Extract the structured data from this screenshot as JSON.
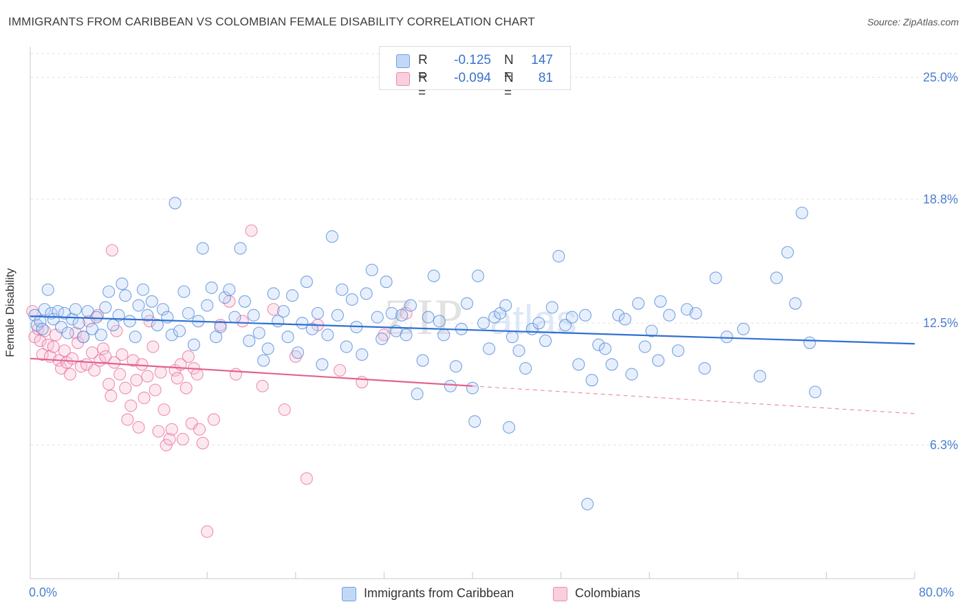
{
  "title": "IMMIGRANTS FROM CARIBBEAN VS COLOMBIAN FEMALE DISABILITY CORRELATION CHART",
  "source": "Source: ZipAtlas.com",
  "watermark": "ZIPatlas",
  "colors": {
    "blue": "#4a85d8",
    "blue_fill": "#b9d2f5",
    "pink": "#e86a9a",
    "pink_fill": "#f7c1d3",
    "axis_text": "#4a7fd0",
    "grid": "#e3e3e3"
  },
  "legend_top": [
    {
      "r_label": "R =",
      "r_value": "-0.125",
      "n_label": "N =",
      "n_value": "147"
    },
    {
      "r_label": "R =",
      "r_value": "-0.094",
      "n_label": "N =",
      "n_value": "81"
    }
  ],
  "legend_bottom": [
    "Immigrants from Caribbean",
    "Colombians"
  ],
  "x_axis": {
    "min_label": "0.0%",
    "max_label": "80.0%"
  },
  "chart_data": {
    "type": "scatter",
    "title": "IMMIGRANTS FROM CARIBBEAN VS COLOMBIAN FEMALE DISABILITY CORRELATION CHART",
    "xlabel": "",
    "ylabel": "Female Disability",
    "xlim": [
      0,
      80
    ],
    "ylim": [
      0,
      26.2
    ],
    "y_ticks": [
      {
        "value": 6.3,
        "label": "6.3%"
      },
      {
        "value": 12.5,
        "label": "12.5%"
      },
      {
        "value": 18.8,
        "label": "18.8%"
      },
      {
        "value": 25.0,
        "label": "25.0%"
      }
    ],
    "x_tick_labels": [
      "0.0%",
      "80.0%"
    ],
    "grid": true,
    "series": [
      {
        "name": "Immigrants from Caribbean",
        "color": "#4a85d8",
        "r": -0.125,
        "n": 147,
        "trend": {
          "x": [
            0,
            80
          ],
          "y": [
            12.85,
            11.45
          ]
        },
        "points": [
          [
            0.4,
            12.9
          ],
          [
            0.6,
            12.4
          ],
          [
            0.9,
            12.6
          ],
          [
            1.1,
            12.2
          ],
          [
            1.3,
            13.2
          ],
          [
            1.6,
            14.2
          ],
          [
            1.9,
            13.0
          ],
          [
            2.1,
            12.7
          ],
          [
            2.5,
            13.1
          ],
          [
            2.8,
            12.3
          ],
          [
            3.1,
            13.0
          ],
          [
            3.4,
            12.0
          ],
          [
            3.8,
            12.7
          ],
          [
            4.1,
            13.2
          ],
          [
            4.4,
            12.5
          ],
          [
            4.8,
            11.8
          ],
          [
            5.2,
            13.1
          ],
          [
            5.6,
            12.2
          ],
          [
            6.0,
            12.8
          ],
          [
            6.4,
            11.9
          ],
          [
            6.8,
            13.3
          ],
          [
            7.1,
            14.1
          ],
          [
            7.5,
            12.4
          ],
          [
            8.0,
            12.9
          ],
          [
            8.3,
            14.5
          ],
          [
            8.6,
            13.9
          ],
          [
            9.0,
            12.6
          ],
          [
            9.5,
            11.8
          ],
          [
            9.8,
            13.4
          ],
          [
            10.2,
            14.2
          ],
          [
            10.6,
            12.9
          ],
          [
            11.0,
            13.6
          ],
          [
            11.5,
            12.4
          ],
          [
            12.0,
            13.2
          ],
          [
            12.4,
            12.8
          ],
          [
            12.8,
            11.9
          ],
          [
            13.1,
            18.6
          ],
          [
            13.5,
            12.1
          ],
          [
            13.9,
            14.1
          ],
          [
            14.3,
            13.0
          ],
          [
            14.8,
            11.4
          ],
          [
            15.2,
            12.6
          ],
          [
            15.6,
            16.3
          ],
          [
            16.0,
            13.4
          ],
          [
            16.4,
            14.3
          ],
          [
            16.8,
            11.8
          ],
          [
            17.2,
            12.3
          ],
          [
            17.6,
            13.8
          ],
          [
            18.0,
            14.2
          ],
          [
            18.5,
            12.8
          ],
          [
            19.0,
            16.3
          ],
          [
            19.4,
            13.6
          ],
          [
            19.8,
            11.6
          ],
          [
            20.2,
            12.9
          ],
          [
            20.7,
            12.0
          ],
          [
            21.1,
            10.6
          ],
          [
            21.5,
            11.2
          ],
          [
            22.0,
            14.0
          ],
          [
            22.4,
            12.6
          ],
          [
            22.9,
            13.1
          ],
          [
            23.3,
            11.8
          ],
          [
            23.7,
            13.9
          ],
          [
            24.2,
            11.0
          ],
          [
            24.6,
            12.5
          ],
          [
            25.0,
            14.6
          ],
          [
            25.5,
            12.2
          ],
          [
            26.0,
            13.0
          ],
          [
            26.4,
            10.4
          ],
          [
            26.9,
            11.9
          ],
          [
            27.3,
            16.9
          ],
          [
            27.8,
            12.9
          ],
          [
            28.2,
            14.2
          ],
          [
            28.6,
            11.3
          ],
          [
            29.1,
            13.7
          ],
          [
            29.5,
            12.3
          ],
          [
            30.0,
            10.9
          ],
          [
            30.4,
            14.0
          ],
          [
            30.9,
            15.2
          ],
          [
            31.4,
            12.8
          ],
          [
            31.8,
            11.7
          ],
          [
            32.2,
            14.6
          ],
          [
            32.7,
            13.0
          ],
          [
            33.1,
            12.1
          ],
          [
            33.6,
            12.9
          ],
          [
            34.0,
            11.9
          ],
          [
            34.4,
            13.4
          ],
          [
            35.0,
            8.9
          ],
          [
            35.5,
            10.6
          ],
          [
            36.0,
            12.8
          ],
          [
            36.5,
            14.9
          ],
          [
            37.0,
            12.6
          ],
          [
            37.4,
            11.9
          ],
          [
            38.0,
            9.3
          ],
          [
            38.5,
            10.3
          ],
          [
            39.0,
            12.2
          ],
          [
            39.5,
            13.5
          ],
          [
            40.0,
            9.2
          ],
          [
            40.5,
            14.9
          ],
          [
            41.0,
            12.5
          ],
          [
            41.5,
            11.2
          ],
          [
            42.0,
            12.8
          ],
          [
            42.5,
            13.0
          ],
          [
            43.0,
            13.4
          ],
          [
            43.6,
            11.8
          ],
          [
            44.2,
            11.1
          ],
          [
            44.8,
            10.2
          ],
          [
            45.4,
            12.2
          ],
          [
            46.0,
            12.5
          ],
          [
            46.6,
            11.6
          ],
          [
            47.2,
            13.3
          ],
          [
            47.8,
            15.9
          ],
          [
            48.4,
            12.4
          ],
          [
            49.0,
            12.8
          ],
          [
            49.6,
            10.4
          ],
          [
            50.2,
            12.9
          ],
          [
            50.8,
            9.6
          ],
          [
            51.4,
            11.4
          ],
          [
            52.0,
            11.2
          ],
          [
            52.6,
            10.4
          ],
          [
            53.2,
            12.9
          ],
          [
            53.8,
            12.7
          ],
          [
            54.4,
            9.9
          ],
          [
            55.0,
            13.5
          ],
          [
            55.6,
            11.3
          ],
          [
            56.2,
            12.1
          ],
          [
            57.0,
            13.6
          ],
          [
            57.8,
            12.9
          ],
          [
            58.6,
            11.1
          ],
          [
            59.4,
            13.2
          ],
          [
            60.2,
            13.0
          ],
          [
            61.0,
            10.2
          ],
          [
            62.0,
            14.8
          ],
          [
            63.0,
            11.8
          ],
          [
            64.5,
            12.2
          ],
          [
            66.0,
            9.8
          ],
          [
            67.5,
            14.8
          ],
          [
            68.5,
            16.1
          ],
          [
            69.2,
            13.5
          ],
          [
            69.8,
            18.1
          ],
          [
            70.5,
            11.5
          ],
          [
            71.0,
            9.0
          ],
          [
            56.8,
            10.6
          ],
          [
            50.4,
            3.3
          ],
          [
            43.3,
            7.2
          ],
          [
            40.2,
            7.5
          ]
        ]
      },
      {
        "name": "Colombians",
        "color": "#e86a9a",
        "r": -0.094,
        "n": 81,
        "trend": {
          "x": [
            0,
            40
          ],
          "y": [
            10.7,
            9.3
          ]
        },
        "trend_dashed": {
          "x": [
            40,
            80
          ],
          "y": [
            9.3,
            7.9
          ]
        },
        "points": [
          [
            0.2,
            13.1
          ],
          [
            0.4,
            11.8
          ],
          [
            0.7,
            12.2
          ],
          [
            0.9,
            11.6
          ],
          [
            1.1,
            10.9
          ],
          [
            1.3,
            12.1
          ],
          [
            1.6,
            11.4
          ],
          [
            1.8,
            10.8
          ],
          [
            2.1,
            11.3
          ],
          [
            2.3,
            11.9
          ],
          [
            2.6,
            10.6
          ],
          [
            2.8,
            10.2
          ],
          [
            3.1,
            11.1
          ],
          [
            3.3,
            10.5
          ],
          [
            3.6,
            9.9
          ],
          [
            3.8,
            10.7
          ],
          [
            4.1,
            12.0
          ],
          [
            4.3,
            11.5
          ],
          [
            4.6,
            10.3
          ],
          [
            4.8,
            11.8
          ],
          [
            5.1,
            10.4
          ],
          [
            5.3,
            12.6
          ],
          [
            5.6,
            11.0
          ],
          [
            5.8,
            10.1
          ],
          [
            6.1,
            12.9
          ],
          [
            6.3,
            10.6
          ],
          [
            6.6,
            11.2
          ],
          [
            6.8,
            10.8
          ],
          [
            7.1,
            9.4
          ],
          [
            7.3,
            8.8
          ],
          [
            7.6,
            10.5
          ],
          [
            7.8,
            12.1
          ],
          [
            8.1,
            9.9
          ],
          [
            8.3,
            10.9
          ],
          [
            8.6,
            9.2
          ],
          [
            8.8,
            7.6
          ],
          [
            9.1,
            8.3
          ],
          [
            9.3,
            10.6
          ],
          [
            9.6,
            9.6
          ],
          [
            9.8,
            7.2
          ],
          [
            10.1,
            10.4
          ],
          [
            10.3,
            8.7
          ],
          [
            10.6,
            9.8
          ],
          [
            10.8,
            12.6
          ],
          [
            11.1,
            11.3
          ],
          [
            11.3,
            9.1
          ],
          [
            11.6,
            7.0
          ],
          [
            11.8,
            10.0
          ],
          [
            12.1,
            8.1
          ],
          [
            12.3,
            6.3
          ],
          [
            12.6,
            6.6
          ],
          [
            12.8,
            7.1
          ],
          [
            13.1,
            10.1
          ],
          [
            13.3,
            9.7
          ],
          [
            13.6,
            10.4
          ],
          [
            13.8,
            6.6
          ],
          [
            14.1,
            9.2
          ],
          [
            14.3,
            10.8
          ],
          [
            14.6,
            7.4
          ],
          [
            14.8,
            10.2
          ],
          [
            15.1,
            9.9
          ],
          [
            15.3,
            7.1
          ],
          [
            15.6,
            6.4
          ],
          [
            16.0,
            1.9
          ],
          [
            16.6,
            7.6
          ],
          [
            17.2,
            12.4
          ],
          [
            18.0,
            13.6
          ],
          [
            18.6,
            9.9
          ],
          [
            19.2,
            12.6
          ],
          [
            20.0,
            17.2
          ],
          [
            21.0,
            9.3
          ],
          [
            22.0,
            13.2
          ],
          [
            23.0,
            8.1
          ],
          [
            24.0,
            10.8
          ],
          [
            25.0,
            4.6
          ],
          [
            26.0,
            12.4
          ],
          [
            28.0,
            10.1
          ],
          [
            30.0,
            9.5
          ],
          [
            32.0,
            11.9
          ],
          [
            34.0,
            13.0
          ],
          [
            7.4,
            16.2
          ]
        ]
      }
    ]
  }
}
